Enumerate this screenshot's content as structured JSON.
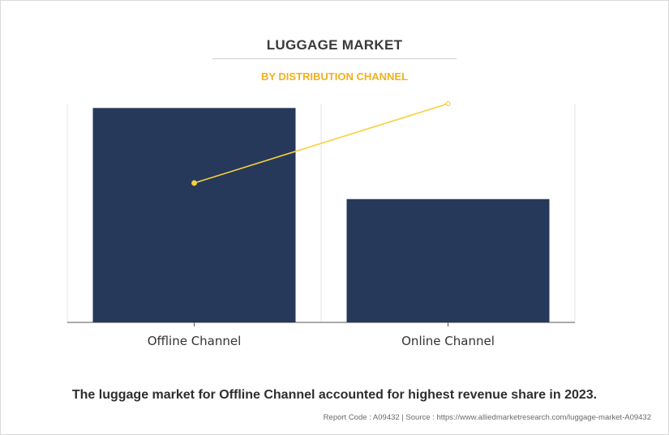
{
  "title": "LUGGAGE MARKET",
  "subtitle": "BY DISTRIBUTION CHANNEL",
  "caption": "The luggage market for Offline Channel accounted for highest revenue share in 2023.",
  "source": "Report Code : A09432  |  Source : https://www.alliedmarketresearch.com/luggage-market-A09432",
  "colors": {
    "bar": "#26395b",
    "line": "#f5d13a",
    "title": "#3a3a3a",
    "subtitle": "#f2b01e"
  },
  "chart_data": {
    "type": "bar",
    "categories": [
      "Offline Channel",
      "Online Channel"
    ],
    "series": [
      {
        "type": "bar",
        "values": [
          100,
          57.5
        ]
      },
      {
        "type": "line",
        "values": [
          65,
          102
        ]
      }
    ],
    "ylim": [
      0,
      102
    ],
    "grid": true,
    "legend": "none",
    "xlabel": "",
    "ylabel": ""
  }
}
